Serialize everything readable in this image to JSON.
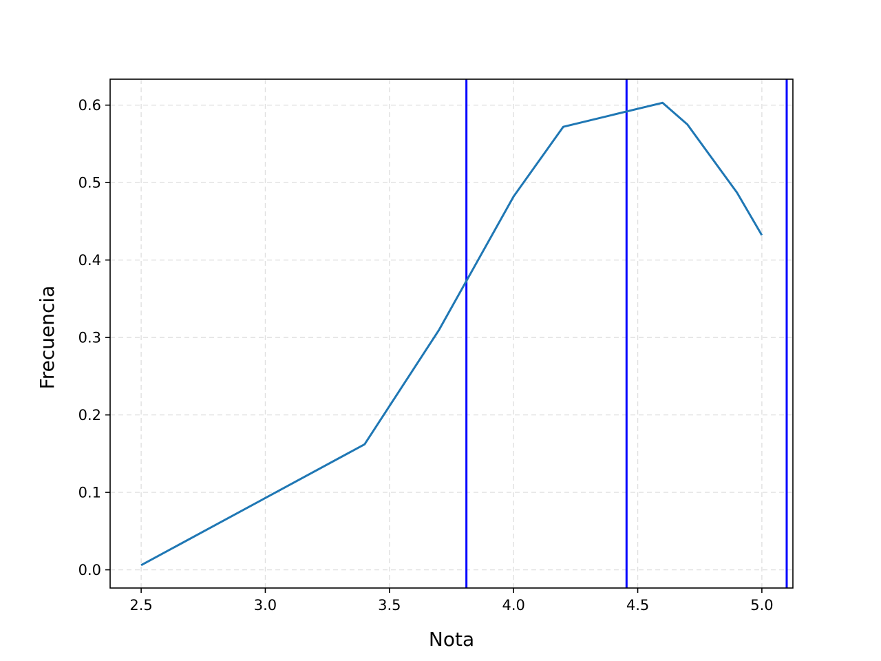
{
  "chart_data": {
    "type": "line",
    "title": "",
    "xlabel": "Nota",
    "ylabel": "Frecuencia",
    "xlim": [
      2.375,
      5.125
    ],
    "ylim": [
      -0.0235,
      0.6335
    ],
    "xticks": [
      2.5,
      3.0,
      3.5,
      4.0,
      4.5,
      5.0
    ],
    "xtick_labels": [
      "2.5",
      "3.0",
      "3.5",
      "4.0",
      "4.5",
      "5.0"
    ],
    "yticks": [
      0.0,
      0.1,
      0.2,
      0.3,
      0.4,
      0.5,
      0.6
    ],
    "ytick_labels": [
      "0.0",
      "0.1",
      "0.2",
      "0.3",
      "0.4",
      "0.5",
      "0.6"
    ],
    "grid": true,
    "series": [
      {
        "color": "#1f77b4",
        "x": [
          2.5,
          3.4,
          3.7,
          4.0,
          4.2,
          4.6,
          4.7,
          4.9,
          5.0
        ],
        "y": [
          0.006,
          0.162,
          0.31,
          0.482,
          0.572,
          0.603,
          0.575,
          0.487,
          0.432
        ]
      }
    ],
    "vlines": [
      {
        "x": 3.81,
        "color": "#0000ff"
      },
      {
        "x": 4.455,
        "color": "#0000ff"
      },
      {
        "x": 5.1,
        "color": "#0000ff"
      }
    ]
  }
}
